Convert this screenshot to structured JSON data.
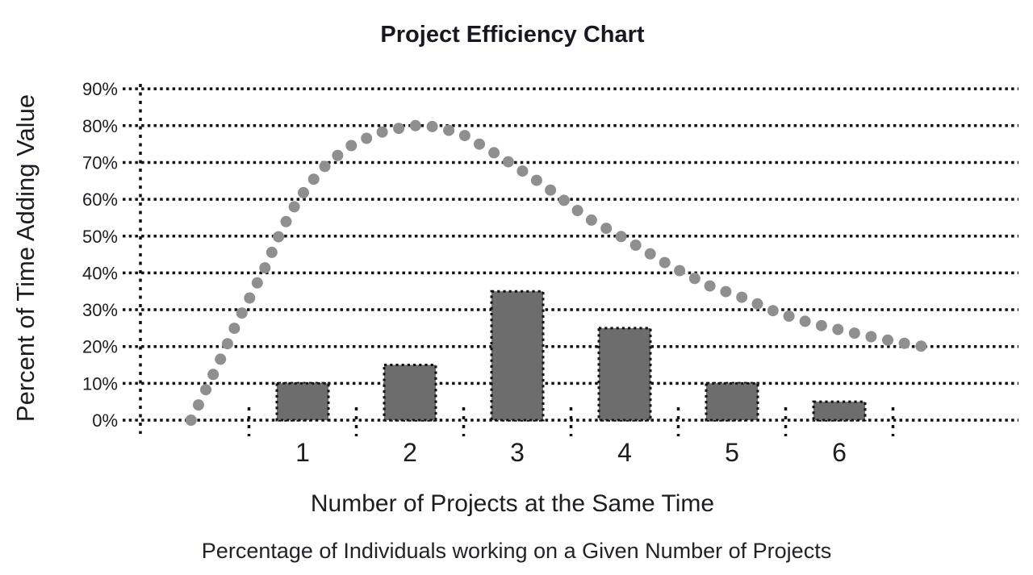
{
  "chart_data": {
    "type": "bar",
    "title": "Project Efficiency Chart",
    "xlabel": "Number of Projects at the Same Time",
    "ylabel": "Percent of Time Adding Value",
    "caption": "Percentage of Individuals working on a Given Number of Projects",
    "categories": [
      "1",
      "2",
      "3",
      "4",
      "5",
      "6"
    ],
    "y_ticks": [
      "0%",
      "10%",
      "20%",
      "30%",
      "40%",
      "50%",
      "60%",
      "70%",
      "80%",
      "90%"
    ],
    "ylim": [
      0,
      90
    ],
    "grid": true,
    "legend": "none",
    "series": [
      {
        "name": "Percentage of Individuals working on a Given Number of Projects",
        "type": "bar",
        "color": "#6d6d6d",
        "values": [
          10,
          15,
          35,
          25,
          10,
          5
        ]
      },
      {
        "name": "Percent of Time Adding Value",
        "type": "dotted-curve",
        "color": "#8f8f8f",
        "points": [
          {
            "x": -0.04,
            "y": 0
          },
          {
            "x": 0.11,
            "y": 9
          },
          {
            "x": 0.25,
            "y": 17.5
          },
          {
            "x": 0.38,
            "y": 26
          },
          {
            "x": 0.52,
            "y": 34
          },
          {
            "x": 0.66,
            "y": 42
          },
          {
            "x": 0.8,
            "y": 51.5
          },
          {
            "x": 0.96,
            "y": 60
          },
          {
            "x": 1.17,
            "y": 68
          },
          {
            "x": 1.41,
            "y": 74
          },
          {
            "x": 1.7,
            "y": 78
          },
          {
            "x": 2.01,
            "y": 80
          },
          {
            "x": 2.17,
            "y": 80
          },
          {
            "x": 2.47,
            "y": 78
          },
          {
            "x": 2.82,
            "y": 72
          },
          {
            "x": 3.24,
            "y": 64
          },
          {
            "x": 3.65,
            "y": 55
          },
          {
            "x": 3.99,
            "y": 49.5
          },
          {
            "x": 4.42,
            "y": 42
          },
          {
            "x": 4.77,
            "y": 36.7
          },
          {
            "x": 5.11,
            "y": 33.2
          },
          {
            "x": 5.41,
            "y": 29.4
          },
          {
            "x": 5.72,
            "y": 26.5
          },
          {
            "x": 6.05,
            "y": 24.2
          },
          {
            "x": 6.39,
            "y": 22.1
          },
          {
            "x": 6.71,
            "y": 20.3
          },
          {
            "x": 6.89,
            "y": 19.6
          }
        ]
      }
    ],
    "colors": {
      "bar_fill": "#6d6d6d",
      "dot_fill": "#8f8f8f",
      "grid_line": "#111111",
      "text": "#1c1c22",
      "background": "#ffffff"
    }
  }
}
